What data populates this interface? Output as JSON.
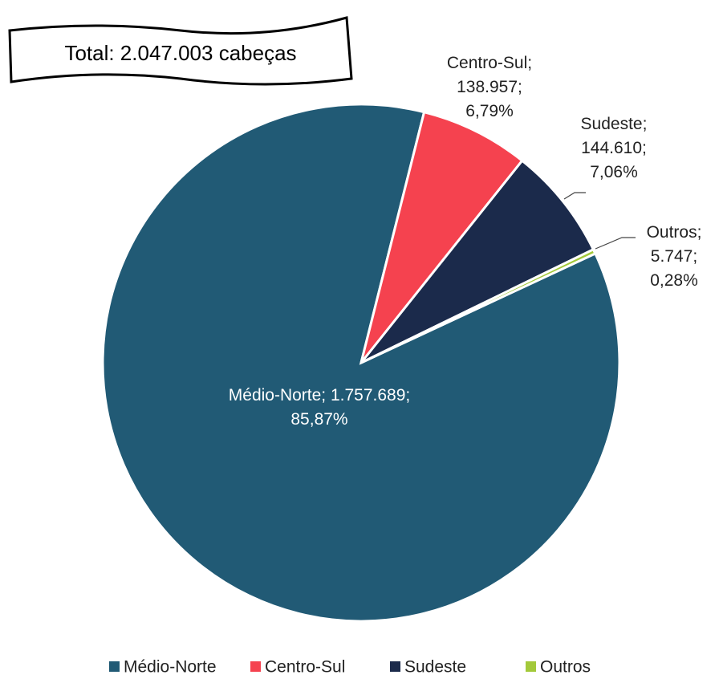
{
  "chart_data": {
    "type": "pie",
    "annotation": "Total: 2.047.003 cabeças",
    "categories": [
      "Médio-Norte",
      "Centro-Sul",
      "Sudeste",
      "Outros"
    ],
    "values": [
      1757689,
      138957,
      144610,
      5747
    ],
    "value_labels": [
      "Médio-Norte; 1.757.689; 85,87%",
      "Centro-Sul; 138.957; 6,79%",
      "Sudeste; 144.610; 7,06%",
      "Outros; 5.747; 0,28%"
    ],
    "colors": [
      "#215a75",
      "#f5424f",
      "#1b2a4b",
      "#a3c93a"
    ],
    "legend": "bottom"
  }
}
